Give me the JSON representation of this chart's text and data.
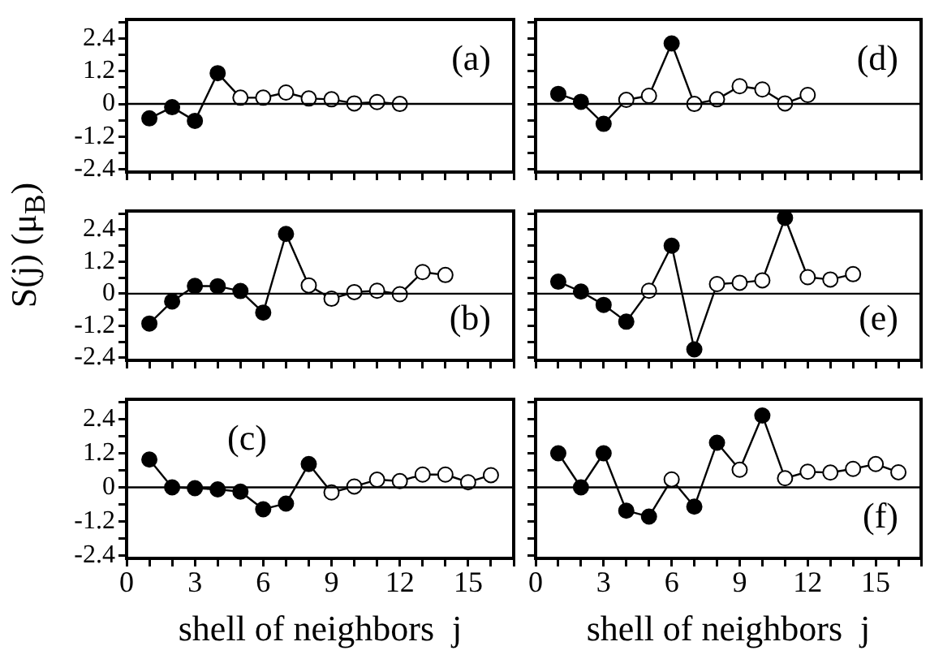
{
  "chart_data": [
    {
      "type": "line",
      "marker": "circle",
      "line_style": "solid",
      "annotations": [
        "(a)"
      ],
      "tick_labels": "y",
      "xlim": [
        0,
        17
      ],
      "ylim": [
        -2.5,
        3.1
      ],
      "xticks": [
        0,
        {
          "value": 1,
          "label": null
        },
        {
          "value": 2,
          "label": null
        },
        3,
        {
          "value": 4,
          "label": null
        },
        {
          "value": 5,
          "label": null
        },
        6,
        {
          "value": 7,
          "label": null
        },
        {
          "value": 8,
          "label": null
        },
        9,
        {
          "value": 10,
          "label": null
        },
        {
          "value": 11,
          "label": null
        },
        12,
        {
          "value": 13,
          "label": null
        },
        {
          "value": 14,
          "label": null
        },
        15,
        {
          "value": 16,
          "label": null
        },
        {
          "value": 17,
          "label": null
        }
      ],
      "yticks": [
        -2.4,
        {
          "value": -1.8,
          "label": null
        },
        -1.2,
        {
          "value": -0.6,
          "label": null
        },
        0,
        {
          "value": 0.6,
          "label": null
        },
        1.2,
        {
          "value": 1.8,
          "label": null
        },
        2.4,
        {
          "value": 3.0,
          "label": null
        }
      ],
      "ref_lines": [
        {
          "axis": "y",
          "value": 0,
          "color": "#000000"
        }
      ],
      "x": [
        1,
        2,
        3,
        4,
        5,
        6,
        7,
        8,
        9,
        10,
        11,
        12
      ],
      "series": [
        {
          "color": "#000000",
          "values": [
            -0.53,
            -0.12,
            -0.62,
            1.13,
            0.23,
            0.23,
            0.42,
            0.2,
            0.17,
            0.02,
            0.07,
            0.0
          ],
          "colors": [
            "#000000",
            "#000000",
            "#000000",
            "#000000",
            "#ffffff",
            "#ffffff",
            "#ffffff",
            "#ffffff",
            "#ffffff",
            "#ffffff",
            "#ffffff",
            "#ffffff"
          ]
        }
      ]
    },
    {
      "type": "line",
      "marker": "circle",
      "line_style": "solid",
      "ylabel": "S(j)  (μ$_{B}$)",
      "annotations": [
        "(b)"
      ],
      "tick_labels": "y",
      "xlim": [
        0,
        17
      ],
      "ylim": [
        -2.5,
        3.1
      ],
      "xticks": [
        0,
        {
          "value": 1,
          "label": null
        },
        {
          "value": 2,
          "label": null
        },
        3,
        {
          "value": 4,
          "label": null
        },
        {
          "value": 5,
          "label": null
        },
        6,
        {
          "value": 7,
          "label": null
        },
        {
          "value": 8,
          "label": null
        },
        9,
        {
          "value": 10,
          "label": null
        },
        {
          "value": 11,
          "label": null
        },
        12,
        {
          "value": 13,
          "label": null
        },
        {
          "value": 14,
          "label": null
        },
        15,
        {
          "value": 16,
          "label": null
        },
        {
          "value": 17,
          "label": null
        }
      ],
      "yticks": [
        -2.4,
        {
          "value": -1.8,
          "label": null
        },
        -1.2,
        {
          "value": -0.6,
          "label": null
        },
        0,
        {
          "value": 0.6,
          "label": null
        },
        1.2,
        {
          "value": 1.8,
          "label": null
        },
        2.4,
        {
          "value": 3.0,
          "label": null
        }
      ],
      "ref_lines": [
        {
          "axis": "y",
          "value": 0,
          "color": "#000000"
        }
      ],
      "x": [
        1,
        2,
        3,
        4,
        5,
        6,
        7,
        8,
        9,
        10,
        11,
        12,
        13,
        14
      ],
      "series": [
        {
          "color": "#000000",
          "values": [
            -1.12,
            -0.29,
            0.29,
            0.28,
            0.1,
            -0.71,
            2.24,
            0.31,
            -0.19,
            0.06,
            0.11,
            -0.02,
            0.81,
            0.7
          ],
          "colors": [
            "#000000",
            "#000000",
            "#000000",
            "#000000",
            "#000000",
            "#000000",
            "#000000",
            "#ffffff",
            "#ffffff",
            "#ffffff",
            "#ffffff",
            "#ffffff",
            "#ffffff",
            "#ffffff"
          ]
        }
      ]
    },
    {
      "type": "line",
      "marker": "circle",
      "line_style": "solid",
      "xlabel": "shell of neighbors  j",
      "annotations": [
        "(c)"
      ],
      "xlim": [
        0,
        17
      ],
      "ylim": [
        -2.5,
        3.1
      ],
      "xticks": [
        0,
        {
          "value": 1,
          "label": null
        },
        {
          "value": 2,
          "label": null
        },
        3,
        {
          "value": 4,
          "label": null
        },
        {
          "value": 5,
          "label": null
        },
        6,
        {
          "value": 7,
          "label": null
        },
        {
          "value": 8,
          "label": null
        },
        9,
        {
          "value": 10,
          "label": null
        },
        {
          "value": 11,
          "label": null
        },
        12,
        {
          "value": 13,
          "label": null
        },
        {
          "value": 14,
          "label": null
        },
        15,
        {
          "value": 16,
          "label": null
        },
        {
          "value": 17,
          "label": null
        }
      ],
      "yticks": [
        -2.4,
        {
          "value": -1.8,
          "label": null
        },
        -1.2,
        {
          "value": -0.6,
          "label": null
        },
        0,
        {
          "value": 0.6,
          "label": null
        },
        1.2,
        {
          "value": 1.8,
          "label": null
        },
        2.4,
        {
          "value": 3.0,
          "label": null
        }
      ],
      "ref_lines": [
        {
          "axis": "y",
          "value": 0,
          "color": "#000000"
        }
      ],
      "x": [
        1,
        2,
        3,
        4,
        5,
        6,
        7,
        8,
        9,
        10,
        11,
        12,
        13,
        14,
        15,
        16
      ],
      "series": [
        {
          "color": "#000000",
          "values": [
            0.98,
            0.0,
            -0.03,
            -0.07,
            -0.15,
            -0.77,
            -0.57,
            0.82,
            -0.18,
            0.03,
            0.27,
            0.22,
            0.45,
            0.45,
            0.18,
            0.43
          ],
          "colors": [
            "#000000",
            "#000000",
            "#000000",
            "#000000",
            "#000000",
            "#000000",
            "#000000",
            "#000000",
            "#ffffff",
            "#ffffff",
            "#ffffff",
            "#ffffff",
            "#ffffff",
            "#ffffff",
            "#ffffff",
            "#ffffff"
          ]
        }
      ]
    },
    {
      "type": "line",
      "marker": "circle",
      "line_style": "solid",
      "annotations": [
        "(d)"
      ],
      "tick_labels": false,
      "xlim": [
        0,
        17
      ],
      "ylim": [
        -2.5,
        3.1
      ],
      "xticks": [
        0,
        {
          "value": 1,
          "label": null
        },
        {
          "value": 2,
          "label": null
        },
        3,
        {
          "value": 4,
          "label": null
        },
        {
          "value": 5,
          "label": null
        },
        6,
        {
          "value": 7,
          "label": null
        },
        {
          "value": 8,
          "label": null
        },
        9,
        {
          "value": 10,
          "label": null
        },
        {
          "value": 11,
          "label": null
        },
        12,
        {
          "value": 13,
          "label": null
        },
        {
          "value": 14,
          "label": null
        },
        15,
        {
          "value": 16,
          "label": null
        },
        {
          "value": 17,
          "label": null
        }
      ],
      "yticks": [
        -2.4,
        {
          "value": -1.8,
          "label": null
        },
        -1.2,
        {
          "value": -0.6,
          "label": null
        },
        0,
        {
          "value": 0.6,
          "label": null
        },
        1.2,
        {
          "value": 1.8,
          "label": null
        },
        2.4,
        {
          "value": 3.0,
          "label": null
        }
      ],
      "ref_lines": [
        {
          "axis": "y",
          "value": 0,
          "color": "#000000"
        }
      ],
      "x": [
        1,
        2,
        3,
        4,
        5,
        6,
        7,
        8,
        9,
        10,
        11,
        12
      ],
      "series": [
        {
          "color": "#000000",
          "values": [
            0.37,
            0.08,
            -0.73,
            0.15,
            0.3,
            2.22,
            0.0,
            0.17,
            0.65,
            0.53,
            0.02,
            0.33
          ],
          "colors": [
            "#000000",
            "#000000",
            "#000000",
            "#ffffff",
            "#ffffff",
            "#000000",
            "#ffffff",
            "#ffffff",
            "#ffffff",
            "#ffffff",
            "#ffffff",
            "#ffffff"
          ]
        }
      ]
    },
    {
      "type": "line",
      "marker": "circle",
      "line_style": "solid",
      "annotations": [
        "(e)"
      ],
      "tick_labels": false,
      "xlim": [
        0,
        17
      ],
      "ylim": [
        -2.5,
        3.1
      ],
      "xticks": [
        0,
        {
          "value": 1,
          "label": null
        },
        {
          "value": 2,
          "label": null
        },
        3,
        {
          "value": 4,
          "label": null
        },
        {
          "value": 5,
          "label": null
        },
        6,
        {
          "value": 7,
          "label": null
        },
        {
          "value": 8,
          "label": null
        },
        9,
        {
          "value": 10,
          "label": null
        },
        {
          "value": 11,
          "label": null
        },
        12,
        {
          "value": 13,
          "label": null
        },
        {
          "value": 14,
          "label": null
        },
        15,
        {
          "value": 16,
          "label": null
        },
        {
          "value": 17,
          "label": null
        }
      ],
      "yticks": [
        -2.4,
        {
          "value": -1.8,
          "label": null
        },
        -1.2,
        {
          "value": -0.6,
          "label": null
        },
        0,
        {
          "value": 0.6,
          "label": null
        },
        1.2,
        {
          "value": 1.8,
          "label": null
        },
        2.4,
        {
          "value": 3.0,
          "label": null
        }
      ],
      "ref_lines": [
        {
          "axis": "y",
          "value": 0,
          "color": "#000000"
        }
      ],
      "x": [
        1,
        2,
        3,
        4,
        5,
        6,
        7,
        8,
        9,
        10,
        11,
        12,
        13,
        14
      ],
      "series": [
        {
          "color": "#000000",
          "values": [
            0.45,
            0.08,
            -0.42,
            -1.05,
            0.11,
            1.8,
            -2.09,
            0.36,
            0.41,
            0.5,
            2.84,
            0.62,
            0.53,
            0.73
          ],
          "colors": [
            "#000000",
            "#000000",
            "#000000",
            "#000000",
            "#ffffff",
            "#000000",
            "#000000",
            "#ffffff",
            "#ffffff",
            "#ffffff",
            "#000000",
            "#ffffff",
            "#ffffff",
            "#ffffff"
          ]
        }
      ]
    },
    {
      "type": "line",
      "marker": "circle",
      "line_style": "solid",
      "xlabel": "shell of neighbors  j",
      "annotations": [
        "(f)"
      ],
      "tick_labels": "x",
      "xlim": [
        0,
        17
      ],
      "ylim": [
        -2.5,
        3.1
      ],
      "xticks": [
        0,
        {
          "value": 1,
          "label": null
        },
        {
          "value": 2,
          "label": null
        },
        3,
        {
          "value": 4,
          "label": null
        },
        {
          "value": 5,
          "label": null
        },
        6,
        {
          "value": 7,
          "label": null
        },
        {
          "value": 8,
          "label": null
        },
        9,
        {
          "value": 10,
          "label": null
        },
        {
          "value": 11,
          "label": null
        },
        12,
        {
          "value": 13,
          "label": null
        },
        {
          "value": 14,
          "label": null
        },
        15,
        {
          "value": 16,
          "label": null
        },
        {
          "value": 17,
          "label": null
        }
      ],
      "yticks": [
        -2.4,
        {
          "value": -1.8,
          "label": null
        },
        -1.2,
        {
          "value": -0.6,
          "label": null
        },
        0,
        {
          "value": 0.6,
          "label": null
        },
        1.2,
        {
          "value": 1.8,
          "label": null
        },
        2.4,
        {
          "value": 3.0,
          "label": null
        }
      ],
      "ref_lines": [
        {
          "axis": "y",
          "value": 0,
          "color": "#000000"
        }
      ],
      "x": [
        1,
        2,
        3,
        4,
        5,
        6,
        7,
        8,
        9,
        10,
        11,
        12,
        13,
        14,
        15,
        16
      ],
      "series": [
        {
          "color": "#000000",
          "values": [
            1.2,
            0.0,
            1.2,
            -0.82,
            -1.03,
            0.28,
            -0.68,
            1.57,
            0.62,
            2.53,
            0.32,
            0.55,
            0.52,
            0.65,
            0.82,
            0.53
          ],
          "colors": [
            "#000000",
            "#000000",
            "#000000",
            "#000000",
            "#000000",
            "#ffffff",
            "#000000",
            "#000000",
            "#ffffff",
            "#000000",
            "#ffffff",
            "#ffffff",
            "#ffffff",
            "#ffffff",
            "#ffffff",
            "#ffffff"
          ]
        }
      ]
    }
  ]
}
